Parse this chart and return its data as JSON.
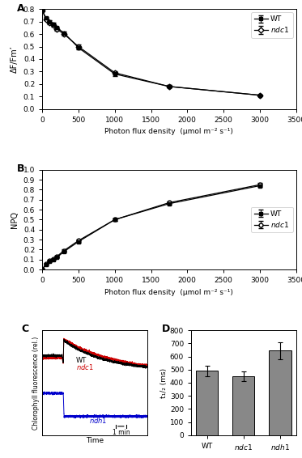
{
  "panel_A": {
    "pfd": [
      0,
      50,
      100,
      150,
      200,
      300,
      500,
      1000,
      1750,
      3000
    ],
    "wt_y": [
      0.79,
      0.73,
      0.7,
      0.68,
      0.65,
      0.61,
      0.49,
      0.28,
      0.18,
      0.11
    ],
    "ndc1_y": [
      0.79,
      0.72,
      0.69,
      0.67,
      0.64,
      0.6,
      0.5,
      0.29,
      0.18,
      0.11
    ],
    "wt_err": [
      0.01,
      0.01,
      0.01,
      0.01,
      0.01,
      0.01,
      0.015,
      0.015,
      0.01,
      0.005
    ],
    "ndc1_err": [
      0.01,
      0.01,
      0.01,
      0.01,
      0.01,
      0.01,
      0.015,
      0.015,
      0.01,
      0.005
    ],
    "ylabel": "ΔF/Fm’",
    "xlabel": "Photon flux density  (μmol m⁻² s⁻¹)",
    "xlim": [
      0,
      3500
    ],
    "ylim": [
      0,
      0.8
    ],
    "yticks": [
      0,
      0.1,
      0.2,
      0.3,
      0.4,
      0.5,
      0.6,
      0.7,
      0.8
    ],
    "xticks": [
      0,
      500,
      1000,
      1500,
      2000,
      2500,
      3000,
      3500
    ],
    "label": "A"
  },
  "panel_B": {
    "pfd": [
      0,
      50,
      100,
      150,
      200,
      300,
      500,
      1000,
      1750,
      3000
    ],
    "wt_y": [
      0.0,
      0.05,
      0.08,
      0.1,
      0.12,
      0.18,
      0.28,
      0.5,
      0.66,
      0.84
    ],
    "ndc1_y": [
      0.0,
      0.06,
      0.09,
      0.11,
      0.13,
      0.19,
      0.29,
      0.5,
      0.67,
      0.85
    ],
    "wt_err": [
      0.005,
      0.005,
      0.005,
      0.005,
      0.005,
      0.01,
      0.01,
      0.015,
      0.01,
      0.01
    ],
    "ndc1_err": [
      0.005,
      0.005,
      0.005,
      0.005,
      0.005,
      0.01,
      0.01,
      0.015,
      0.01,
      0.015
    ],
    "ylabel": "NPQ",
    "xlabel": "Photon flux density  (μmol m⁻² s⁻¹)",
    "xlim": [
      0,
      3500
    ],
    "ylim": [
      0,
      1
    ],
    "yticks": [
      0,
      0.1,
      0.2,
      0.3,
      0.4,
      0.5,
      0.6,
      0.7,
      0.8,
      0.9,
      1
    ],
    "xticks": [
      0,
      500,
      1000,
      1500,
      2000,
      2500,
      3000,
      3500
    ],
    "label": "B"
  },
  "panel_C": {
    "label": "C",
    "xlabel": "Time",
    "ylabel": "Chlorophyll fluorescence (rel.)",
    "scalebar_label": "1 min",
    "wt_color": "#000000",
    "ndc1_color": "#cc0000",
    "ndh1_color": "#0000cc",
    "wt_label": "WT",
    "ndc1_label": "ndc1",
    "ndh1_label": "ndh1"
  },
  "panel_D": {
    "label": "D",
    "categories": [
      "WT",
      "ndc1",
      "ndh1"
    ],
    "values": [
      490,
      450,
      645
    ],
    "errors": [
      40,
      35,
      65
    ],
    "bar_color": "#888888",
    "ylabel": "t₁/₂ (ms)",
    "ylim": [
      0,
      800
    ],
    "yticks": [
      0,
      100,
      200,
      300,
      400,
      500,
      600,
      700,
      800
    ]
  },
  "bg_color": "#ffffff"
}
